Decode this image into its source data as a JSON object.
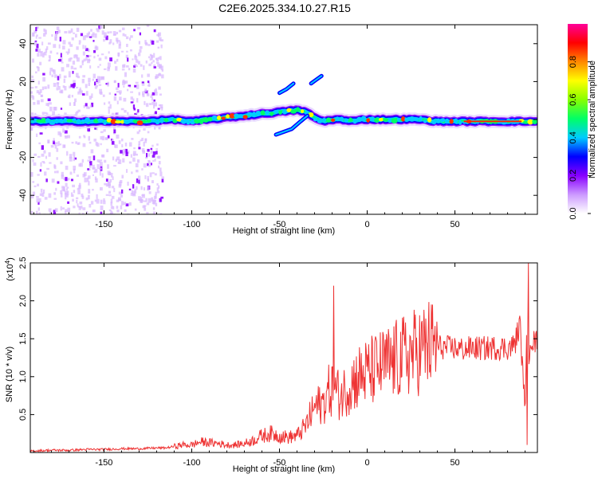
{
  "figure": {
    "title": "C2E6.2025.334.10.27.R15"
  },
  "chart_data": [
    {
      "type": "heatmap",
      "xlabel": "Height of straight line (km)",
      "ylabel": "Frequency (Hz)",
      "xlim": [
        -192,
        97
      ],
      "ylim": [
        -50,
        50
      ],
      "xticks": [
        -150,
        -100,
        -50,
        0,
        50
      ],
      "yticks": [
        -40,
        -20,
        0,
        20,
        40
      ],
      "grid": false,
      "colorbar": {
        "label": "Normalized spectral amplitude",
        "range": [
          0,
          1
        ],
        "ticks": [
          0.0,
          0.2,
          0.4,
          0.6,
          0.8
        ],
        "tick_labels": [
          "0.0",
          "0.2",
          "0.4",
          "0.6",
          "0.8"
        ],
        "colormap": [
          "#ffffff",
          "#cc99ff",
          "#8800ff",
          "#0000ff",
          "#00ccff",
          "#00ff66",
          "#88ff00",
          "#ffff00",
          "#ff8800",
          "#ff0000",
          "#ff0099"
        ]
      },
      "ridge": {
        "x": [
          -192,
          -170,
          -150,
          -130,
          -110,
          -100,
          -90,
          -80,
          -70,
          -60,
          -50,
          -40,
          -35,
          -30,
          -25,
          -20,
          -15,
          -10,
          -5,
          0,
          10,
          20,
          30,
          40,
          50,
          60,
          70,
          80,
          90,
          97
        ],
        "freq": [
          -1,
          -1,
          -1,
          -1,
          0,
          -1,
          0,
          1,
          2,
          3,
          4,
          5,
          4,
          1,
          -1,
          0,
          0,
          -1,
          0,
          0,
          0,
          0,
          0,
          -1,
          -1,
          -1,
          -1,
          -1,
          -1,
          -1
        ]
      },
      "noise_region": [
        -192,
        -117
      ],
      "branches": [
        {
          "x": [
            -52,
            -43,
            -38,
            -34
          ],
          "freq": [
            -8,
            -5,
            -1,
            2
          ]
        },
        {
          "x": [
            -50,
            -46,
            -42
          ],
          "freq": [
            14,
            16,
            19
          ]
        },
        {
          "x": [
            -32,
            -29,
            -26
          ],
          "freq": [
            19,
            21,
            23
          ]
        }
      ]
    },
    {
      "type": "line",
      "xlabel": "Height of straight line (km)",
      "ylabel": "SNR (10 * v/v)",
      "y_multiplier": "(x10",
      "y_multiplier_exp": "4",
      "y_multiplier_close": ")",
      "xlim": [
        -192,
        97
      ],
      "ylim": [
        0,
        2.5
      ],
      "xticks": [
        -150,
        -100,
        -50,
        0,
        50
      ],
      "yticks": [
        0.5,
        1.0,
        1.5,
        2.0,
        2.5
      ],
      "ytick_labels": [
        "0.5",
        "1.0",
        "1.5",
        "2.0",
        "2.5"
      ],
      "grid": false,
      "series": [
        {
          "color": "#ee3333",
          "x": [
            -192,
            -180,
            -170,
            -160,
            -150,
            -140,
            -130,
            -120,
            -115,
            -110,
            -105,
            -100,
            -95,
            -90,
            -85,
            -80,
            -75,
            -70,
            -65,
            -60,
            -55,
            -50,
            -45,
            -40,
            -35,
            -30,
            -25,
            -22,
            -20,
            -18,
            -15,
            -10,
            -5,
            0,
            5,
            10,
            15,
            20,
            25,
            30,
            35,
            40,
            45,
            50,
            55,
            60,
            65,
            70,
            75,
            80,
            83,
            85,
            87,
            88,
            90,
            91,
            92,
            93,
            95,
            97
          ],
          "values": [
            0.02,
            0.03,
            0.03,
            0.04,
            0.04,
            0.05,
            0.05,
            0.06,
            0.06,
            0.08,
            0.1,
            0.1,
            0.14,
            0.13,
            0.12,
            0.1,
            0.1,
            0.12,
            0.16,
            0.22,
            0.25,
            0.22,
            0.2,
            0.22,
            0.35,
            0.6,
            0.65,
            0.8,
            0.85,
            0.8,
            0.75,
            0.9,
            1.0,
            1.05,
            1.1,
            1.15,
            1.2,
            1.25,
            1.3,
            1.35,
            1.42,
            1.4,
            1.38,
            1.38,
            1.36,
            1.38,
            1.37,
            1.38,
            1.38,
            1.38,
            1.4,
            1.5,
            1.7,
            1.3,
            0.6,
            1.6,
            1.2,
            1.55,
            1.45,
            1.45
          ]
        }
      ],
      "spikes": [
        {
          "x": -19,
          "value": 2.2
        },
        {
          "x": 92,
          "value": 2.5
        },
        {
          "x": 91,
          "value": 0.1
        }
      ]
    }
  ]
}
